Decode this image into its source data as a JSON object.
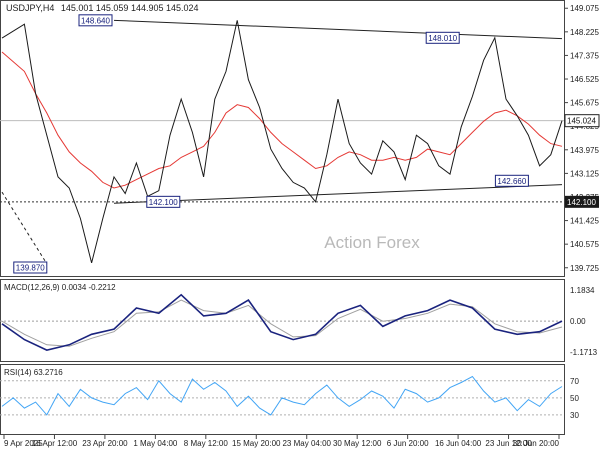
{
  "chart_data": {
    "type": "line",
    "symbol_header": "USDJPY,H4",
    "ohlc_header": "145.001 145.059 144.905 145.024",
    "watermark": "Action Forex",
    "x_labels": [
      "9 Apr 2025",
      "16 Apr 12:00",
      "23 Apr 20:00",
      "1 May 04:00",
      "8 May 12:00",
      "15 May 20:00",
      "23 May 04:00",
      "30 May 12:00",
      "6 Jun 20:00",
      "16 Jun 04:00",
      "23 Jun 12:00",
      "30 Jun 20:00"
    ],
    "price_axis": {
      "ticks": [
        "149.075",
        "148.225",
        "147.375",
        "146.525",
        "145.675",
        "144.825",
        "143.975",
        "143.125",
        "142.275",
        "141.425",
        "140.575",
        "139.725"
      ],
      "tick_values": [
        149.075,
        148.225,
        147.375,
        146.525,
        145.675,
        144.825,
        143.975,
        143.125,
        142.275,
        141.425,
        140.575,
        139.725
      ],
      "ylim": [
        139.5,
        149.3
      ],
      "current_label": "145.024",
      "current_value": 145.024,
      "support_label": "142.100",
      "support_value": 142.1,
      "colors": {
        "price": "#1a1a1a",
        "ma": "#e53935",
        "current_box": "#ffffff",
        "support_box": "#1a1a1a"
      }
    },
    "price_series": {
      "x": [
        0,
        4,
        6,
        8,
        10,
        12,
        14,
        16,
        18,
        20,
        22,
        24,
        26,
        28,
        30,
        32,
        34,
        36,
        38,
        40,
        42,
        44,
        46,
        48,
        50,
        52,
        54,
        56,
        58,
        60,
        62,
        64,
        66,
        68,
        70,
        72,
        74,
        76,
        78,
        80,
        82,
        84,
        86,
        88,
        90,
        92,
        94,
        96,
        98,
        100
      ],
      "close": [
        148.0,
        148.5,
        146.0,
        144.5,
        143.0,
        142.6,
        141.5,
        139.9,
        141.5,
        143.0,
        142.4,
        143.5,
        142.3,
        142.5,
        144.5,
        145.8,
        144.6,
        143.0,
        145.8,
        146.8,
        148.64,
        146.5,
        145.5,
        144.0,
        143.3,
        142.8,
        142.6,
        142.1,
        143.8,
        145.8,
        144.2,
        143.5,
        143.1,
        144.3,
        143.9,
        142.9,
        144.5,
        144.2,
        143.4,
        143.1,
        144.8,
        145.9,
        147.2,
        148.01,
        145.8,
        145.2,
        144.5,
        143.4,
        143.8,
        145.024
      ],
      "ma": [
        147.5,
        146.8,
        146.0,
        145.3,
        144.5,
        143.9,
        143.5,
        143.2,
        142.8,
        142.6,
        142.7,
        142.9,
        143.1,
        143.3,
        143.4,
        143.7,
        143.9,
        144.1,
        144.6,
        145.3,
        145.6,
        145.5,
        145.1,
        144.6,
        144.2,
        143.9,
        143.6,
        143.3,
        143.4,
        143.7,
        143.9,
        143.8,
        143.6,
        143.6,
        143.7,
        143.6,
        143.7,
        144.0,
        143.9,
        143.8,
        144.2,
        144.6,
        145.0,
        145.3,
        145.4,
        145.2,
        144.9,
        144.5,
        144.2,
        144.1
      ]
    },
    "annotations": [
      {
        "label": "148.640",
        "x": 20,
        "value": 148.64
      },
      {
        "label": "139.870",
        "x": 8,
        "value": 139.87
      },
      {
        "label": "142.100",
        "x": 28,
        "value": 142.1
      },
      {
        "label": "148.010",
        "x": 82,
        "value": 148.01
      },
      {
        "label": "142.660",
        "x": 94,
        "value": 142.66
      }
    ],
    "trendlines": [
      {
        "x1": 20,
        "y1": 148.64,
        "x2": 100,
        "y2": 147.98,
        "style": "solid"
      },
      {
        "x1": 20,
        "y1": 142.05,
        "x2": 100,
        "y2": 142.72,
        "style": "solid"
      },
      {
        "x1": 0,
        "y1": 142.45,
        "x2": 8,
        "y2": 139.87,
        "style": "dashed"
      }
    ],
    "macd": {
      "header": "MACD(12,26,9) 0.0034 -0.2212",
      "ticks": [
        "1.1834",
        "0.00",
        "-1.1713"
      ],
      "tick_values": [
        1.1834,
        0.0,
        -1.1713
      ],
      "ylim": [
        -1.4,
        1.45
      ],
      "x": [
        0,
        4,
        8,
        12,
        16,
        20,
        24,
        28,
        32,
        36,
        40,
        44,
        48,
        52,
        56,
        60,
        64,
        68,
        72,
        76,
        80,
        84,
        88,
        92,
        96,
        100
      ],
      "macd": [
        -0.1,
        -0.7,
        -1.1,
        -0.9,
        -0.5,
        -0.3,
        0.5,
        0.3,
        1.0,
        0.2,
        0.3,
        0.8,
        -0.4,
        -0.7,
        -0.5,
        0.3,
        0.6,
        -0.2,
        0.2,
        0.4,
        0.8,
        0.5,
        -0.3,
        -0.5,
        -0.4,
        0.0034
      ],
      "signal": [
        0.0,
        -0.5,
        -0.9,
        -0.95,
        -0.65,
        -0.4,
        0.3,
        0.35,
        0.8,
        0.4,
        0.3,
        0.6,
        -0.1,
        -0.6,
        -0.55,
        0.1,
        0.45,
        0.0,
        0.1,
        0.3,
        0.65,
        0.55,
        -0.1,
        -0.4,
        -0.45,
        -0.2212
      ]
    },
    "rsi": {
      "header": "RSI(14) 63.2716",
      "ticks": [
        "70",
        "50",
        "30"
      ],
      "tick_values": [
        70,
        50,
        30
      ],
      "ylim": [
        10,
        85
      ],
      "x": [
        0,
        2,
        4,
        6,
        8,
        10,
        12,
        14,
        16,
        18,
        20,
        22,
        24,
        26,
        28,
        30,
        32,
        34,
        36,
        38,
        40,
        42,
        44,
        46,
        48,
        50,
        52,
        54,
        56,
        58,
        60,
        62,
        64,
        66,
        68,
        70,
        72,
        74,
        76,
        78,
        80,
        82,
        84,
        86,
        88,
        90,
        92,
        94,
        96,
        98,
        100
      ],
      "values": [
        40,
        50,
        38,
        45,
        30,
        55,
        40,
        60,
        50,
        45,
        42,
        55,
        62,
        48,
        70,
        55,
        45,
        72,
        60,
        68,
        58,
        40,
        52,
        38,
        30,
        50,
        45,
        42,
        55,
        65,
        50,
        40,
        48,
        58,
        52,
        38,
        60,
        55,
        45,
        50,
        62,
        68,
        75,
        58,
        45,
        50,
        35,
        48,
        40,
        55,
        63.2716
      ]
    }
  }
}
